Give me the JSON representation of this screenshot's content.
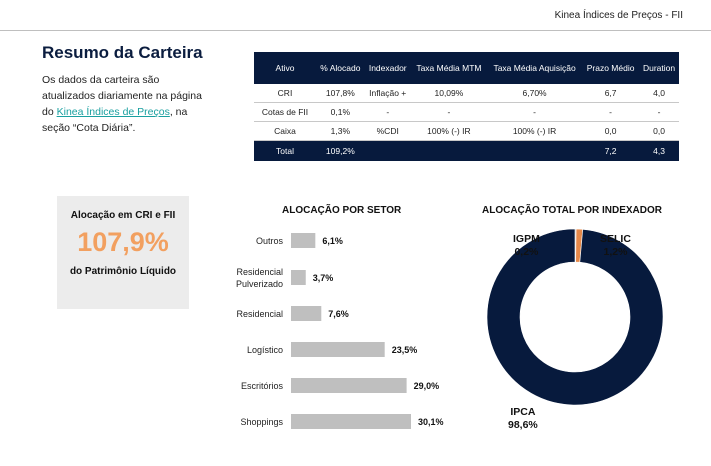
{
  "header": {
    "title": "Kinea Índices de Preços - FII"
  },
  "summary": {
    "title": "Resumo da Carteira",
    "text_before": "Os dados da carteira são atualizados diariamente na página do ",
    "link_text": "Kinea Índices de Preços",
    "text_after": ", na seção “Cota Diária”."
  },
  "table": {
    "headers": [
      "Ativo",
      "% Alocado",
      "Indexador",
      "Taxa Média MTM",
      "Taxa Média Aquisição",
      "Prazo Médio",
      "Duration"
    ],
    "rows": [
      [
        "CRI",
        "107,8%",
        "Inflação +",
        "10,09%",
        "6,70%",
        "6,7",
        "4,0"
      ],
      [
        "Cotas de FII",
        "0,1%",
        "-",
        "-",
        "-",
        "-",
        "-"
      ],
      [
        "Caixa",
        "1,3%",
        "%CDI",
        "100% (-) IR",
        "100% (-) IR",
        "0,0",
        "0,0"
      ]
    ],
    "total": [
      "Total",
      "109,2%",
      "",
      "",
      "",
      "7,2",
      "4,3"
    ]
  },
  "kpi": {
    "title": "Alocação em CRI e FII",
    "value": "107,9%",
    "footer": "do Patrimônio Líquido",
    "value_color": "#f2a060"
  },
  "chart_data": [
    {
      "type": "bar",
      "orientation": "horizontal",
      "title": "ALOCAÇÃO POR SETOR",
      "categories": [
        "Outros",
        "Residencial Pulverizado",
        "Residencial",
        "Logístico",
        "Escritórios",
        "Shoppings"
      ],
      "values": [
        6.1,
        3.7,
        7.6,
        23.5,
        29.0,
        30.1
      ],
      "value_labels": [
        "6,1%",
        "3,7%",
        "7,6%",
        "23,5%",
        "29,0%",
        "30,1%"
      ],
      "bar_color": "#bfbfbf",
      "grid": false
    },
    {
      "type": "pie",
      "style": "donut",
      "title": "ALOCAÇÃO TOTAL POR INDEXADOR",
      "labels": [
        "IPCA",
        "IGPM",
        "SELIC"
      ],
      "values": [
        98.6,
        0.2,
        1.2
      ],
      "value_labels": [
        "98,6%",
        "0,2%",
        "1,2%"
      ],
      "colors": [
        "#071a3d",
        "#9a9a9a",
        "#e6894a"
      ]
    }
  ]
}
